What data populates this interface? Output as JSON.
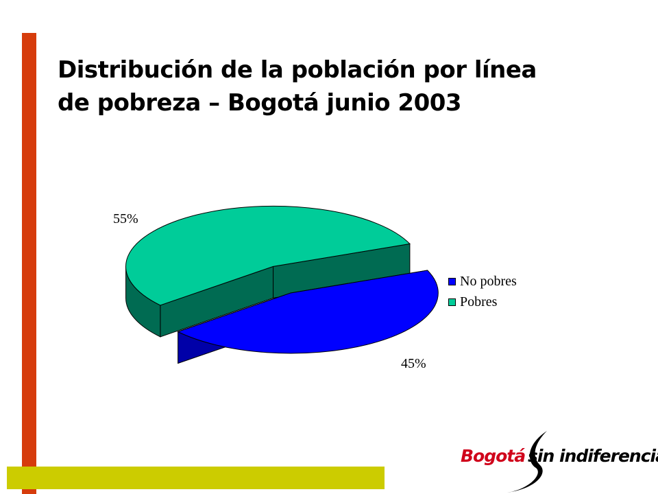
{
  "slide": {
    "title_line1": "Distribución de la población por línea",
    "title_line2": "de pobreza – Bogotá junio 2003"
  },
  "colors": {
    "left_bar": "#d63c0c",
    "bottom_bar": "#cccc00",
    "no_pobres_top": "#0000ff",
    "no_pobres_side": "#0000a8",
    "pobres_top": "#00cc99",
    "pobres_side": "#006b52"
  },
  "chart_data": {
    "type": "pie",
    "style": "3d-exploded",
    "title": "Distribución de la población por línea de pobreza – Bogotá junio 2003",
    "categories": [
      "No pobres",
      "Pobres"
    ],
    "values": [
      45,
      55
    ],
    "unit": "%",
    "data_labels": [
      "45%",
      "55%"
    ],
    "legend_position": "right"
  },
  "logo": {
    "text_part1": "Bogotá",
    "text_part2": "sin indiferencia"
  }
}
